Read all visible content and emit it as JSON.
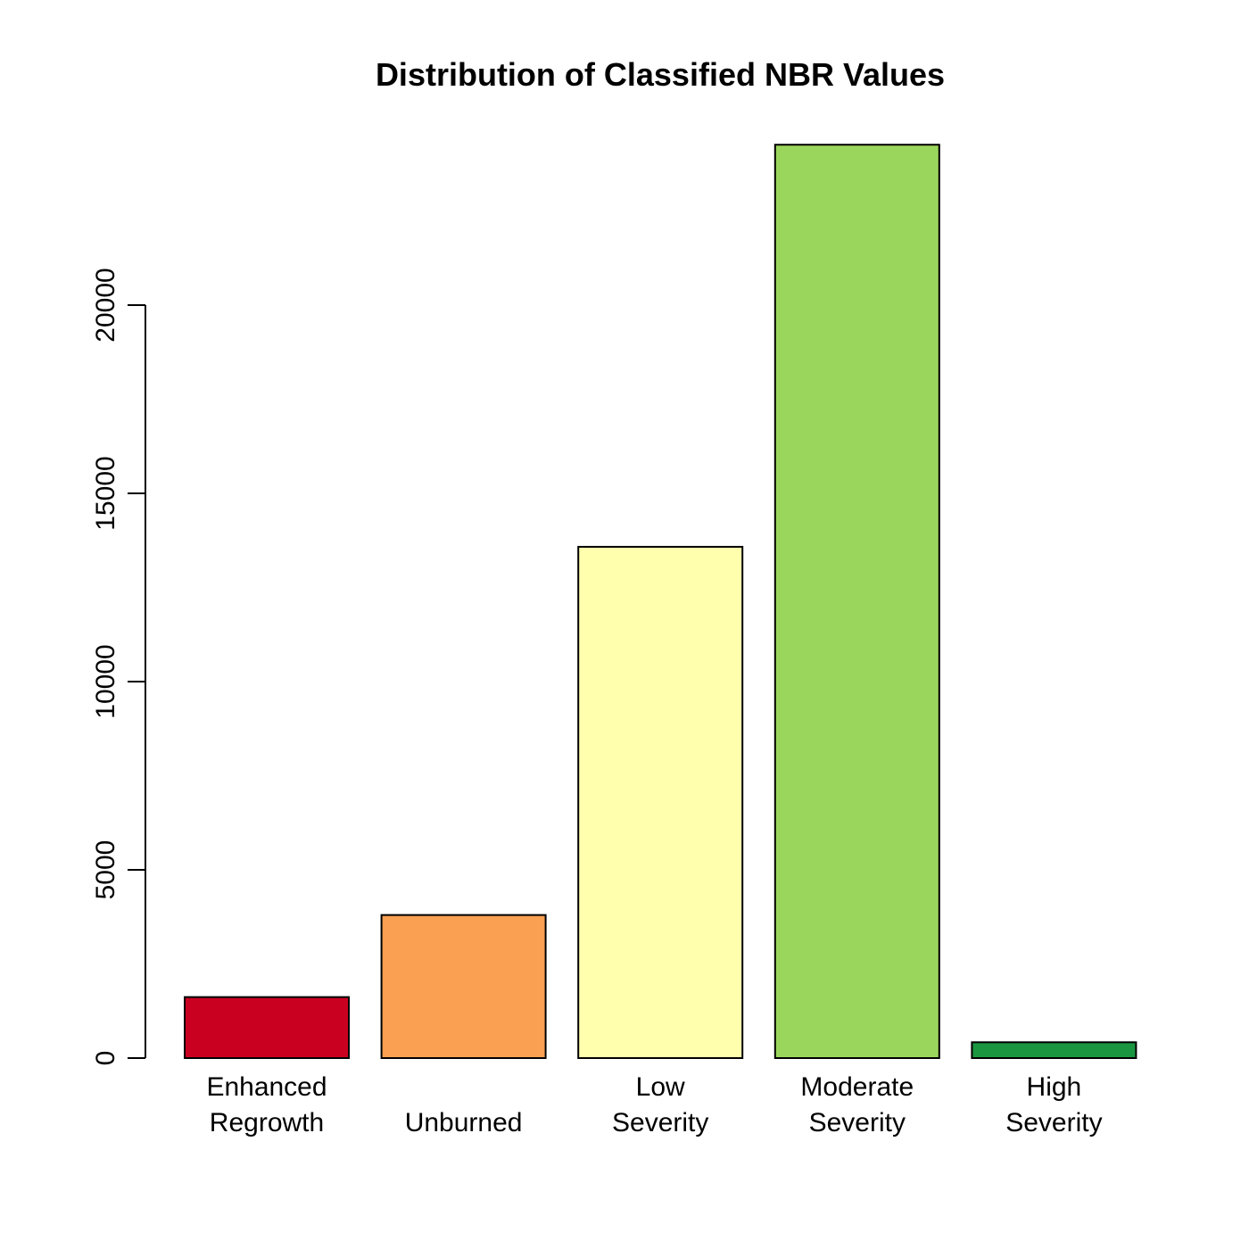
{
  "chart_data": {
    "type": "bar",
    "title": "Distribution of Classified NBR Values",
    "xlabel": "",
    "ylabel": "",
    "categories": [
      [
        "Enhanced",
        "Regrowth"
      ],
      [
        "Unburned"
      ],
      [
        "Low",
        "Severity"
      ],
      [
        "Moderate",
        "Severity"
      ],
      [
        "High",
        "Severity"
      ]
    ],
    "values": [
      1620,
      3800,
      13580,
      24260,
      420
    ],
    "colors": [
      "#ca0020",
      "#f9a052",
      "#ffffae",
      "#9bd65c",
      "#1a9641"
    ],
    "yticks": [
      0,
      5000,
      10000,
      15000,
      20000
    ],
    "ylim": [
      0,
      24260
    ],
    "grid": false,
    "legend": "none"
  }
}
